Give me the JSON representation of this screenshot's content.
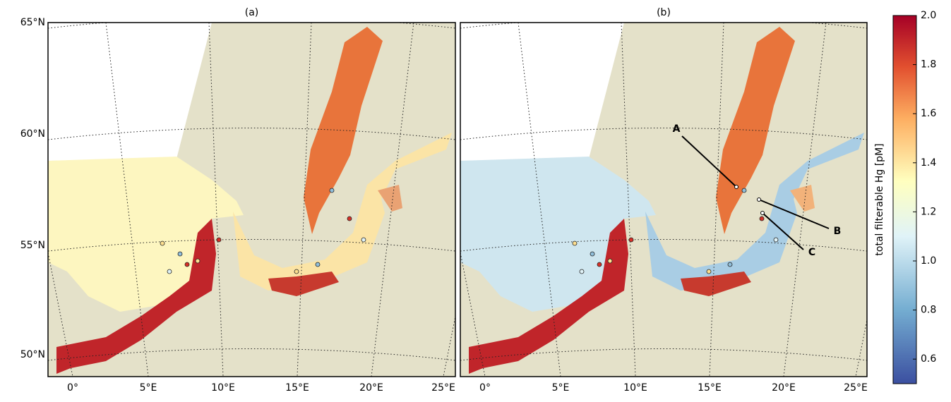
{
  "panels": [
    {
      "label": "(a)"
    },
    {
      "label": "(b)"
    }
  ],
  "lat_labels": [
    "65°N",
    "60°N",
    "55°N",
    "50°N"
  ],
  "lon_labels": [
    "0°",
    "5°E",
    "10°E",
    "15°E",
    "20°E",
    "25°E"
  ],
  "annotations": [
    "A",
    "B",
    "C"
  ],
  "colorbar": {
    "label": "total filterable Hg [pM]",
    "lim": [
      0.5,
      2.0
    ],
    "ticks": [
      0.6,
      0.8,
      {
        "value": 1,
        "label": "1.0"
      },
      1.2,
      1.4,
      1.6,
      1.8,
      {
        "value": 2,
        "label": "2.0"
      }
    ]
  }
}
